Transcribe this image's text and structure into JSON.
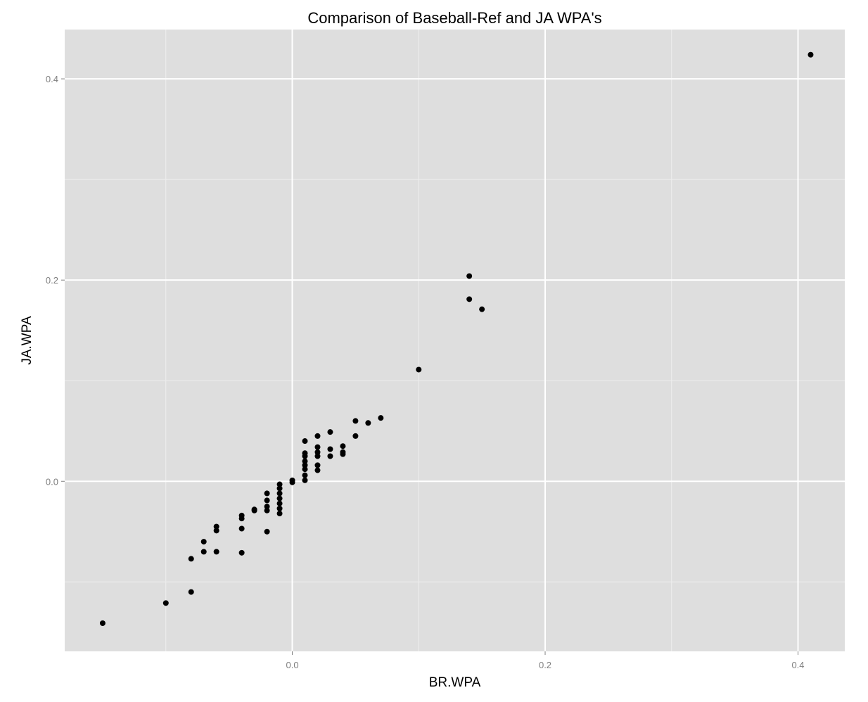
{
  "chart_data": {
    "type": "scatter",
    "title": "Comparison of Baseball-Ref and JA WPA's",
    "xlabel": "BR.WPA",
    "ylabel": "JA.WPA",
    "xlim": [
      -0.18,
      0.437
    ],
    "ylim": [
      -0.169,
      0.449
    ],
    "x_ticks": [
      0.0,
      0.2,
      0.4
    ],
    "x_tick_labels": [
      "0.0",
      "0.2",
      "0.4"
    ],
    "y_ticks": [
      0.0,
      0.2,
      0.4
    ],
    "y_tick_labels": [
      "0.0",
      "0.2",
      "0.4"
    ],
    "x_minor_gridlines": [
      -0.1,
      0.1,
      0.3
    ],
    "y_minor_gridlines": [
      -0.1,
      0.1,
      0.3
    ],
    "grid": true,
    "legend": "none",
    "colors": {
      "panel": "#dedede",
      "grid_major": "#ffffff",
      "grid_minor": "#eeeeee",
      "point": "#000000",
      "tick_label": "#7f7f7f"
    },
    "series": [
      {
        "points": [
          [
            -0.15,
            -0.141
          ],
          [
            -0.1,
            -0.121
          ],
          [
            -0.08,
            -0.11
          ],
          [
            -0.08,
            -0.077
          ],
          [
            -0.07,
            -0.07
          ],
          [
            -0.07,
            -0.06
          ],
          [
            -0.06,
            -0.07
          ],
          [
            -0.06,
            -0.049
          ],
          [
            -0.06,
            -0.045
          ],
          [
            -0.04,
            -0.071
          ],
          [
            -0.04,
            -0.047
          ],
          [
            -0.04,
            -0.037
          ],
          [
            -0.04,
            -0.034
          ],
          [
            -0.03,
            -0.029
          ],
          [
            -0.03,
            -0.028
          ],
          [
            -0.02,
            -0.05
          ],
          [
            -0.02,
            -0.029
          ],
          [
            -0.02,
            -0.025
          ],
          [
            -0.02,
            -0.019
          ],
          [
            -0.02,
            -0.012
          ],
          [
            -0.01,
            -0.032
          ],
          [
            -0.01,
            -0.027
          ],
          [
            -0.01,
            -0.022
          ],
          [
            -0.01,
            -0.017
          ],
          [
            -0.01,
            -0.012
          ],
          [
            -0.01,
            -0.007
          ],
          [
            -0.01,
            -0.003
          ],
          [
            0.0,
            -0.001
          ],
          [
            0.0,
            0.001
          ],
          [
            0.01,
            0.001
          ],
          [
            0.01,
            0.006
          ],
          [
            0.01,
            0.012
          ],
          [
            0.01,
            0.016
          ],
          [
            0.01,
            0.02
          ],
          [
            0.01,
            0.025
          ],
          [
            0.01,
            0.028
          ],
          [
            0.01,
            0.04
          ],
          [
            0.02,
            0.011
          ],
          [
            0.02,
            0.016
          ],
          [
            0.02,
            0.025
          ],
          [
            0.02,
            0.029
          ],
          [
            0.02,
            0.034
          ],
          [
            0.02,
            0.045
          ],
          [
            0.03,
            0.025
          ],
          [
            0.03,
            0.032
          ],
          [
            0.03,
            0.049
          ],
          [
            0.04,
            0.027
          ],
          [
            0.04,
            0.029
          ],
          [
            0.04,
            0.035
          ],
          [
            0.05,
            0.045
          ],
          [
            0.05,
            0.06
          ],
          [
            0.06,
            0.058
          ],
          [
            0.07,
            0.063
          ],
          [
            0.1,
            0.111
          ],
          [
            0.14,
            0.181
          ],
          [
            0.14,
            0.204
          ],
          [
            0.15,
            0.171
          ],
          [
            0.41,
            0.424
          ]
        ]
      }
    ]
  }
}
